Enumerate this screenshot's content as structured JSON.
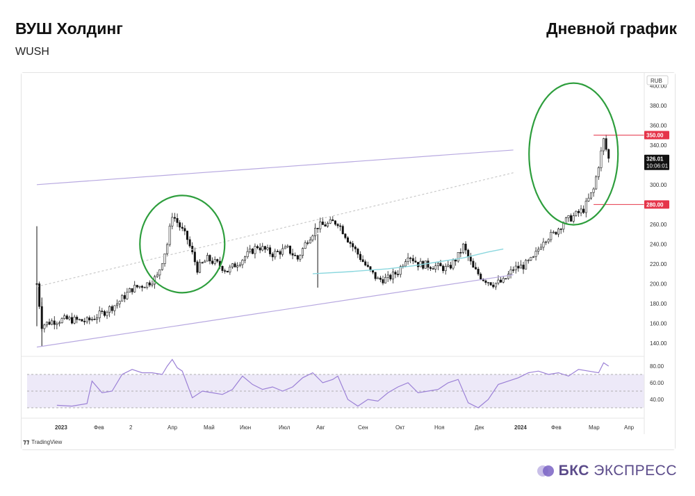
{
  "header": {
    "title": "ВУШ Холдинг",
    "ticker": "WUSH",
    "right_title": "Дневной график"
  },
  "brand": {
    "tradingview": "TradingView",
    "bcs_bold": "БКС",
    "bcs_rest": "ЭКСПРЕСС"
  },
  "chart_data": {
    "type": "candlestick",
    "currency": "RUB",
    "x_ticks": [
      "2023",
      "Фев",
      "2",
      "Апр",
      "Май",
      "Июн",
      "Июл",
      "Авг",
      "Сен",
      "Окт",
      "Ноя",
      "Дек",
      "2024",
      "Фев",
      "Мар",
      "Апр"
    ],
    "y_ticks": [
      140,
      160,
      180,
      200,
      220,
      240,
      260,
      280,
      300,
      320,
      340,
      360,
      380,
      400
    ],
    "y_tick_labels": [
      "140.00",
      "160.00",
      "180.00",
      "200.00",
      "220.00",
      "240.00",
      "260.00",
      "280.00",
      "300.00",
      "320.00",
      "340.00",
      "360.00",
      "380.00",
      "400.00"
    ],
    "ylim": [
      128,
      410
    ],
    "price_labels": {
      "upper": {
        "value": 350,
        "text": "350.00",
        "color": "#e5354a"
      },
      "current": {
        "value": 326.01,
        "text": "326.01",
        "time": "10:06:01",
        "color": "#111111"
      },
      "lower": {
        "value": 280,
        "text": "280.00",
        "color": "#e5354a"
      }
    },
    "trend_path": [
      [
        0,
        200
      ],
      [
        2,
        158
      ],
      [
        6,
        162
      ],
      [
        12,
        164
      ],
      [
        20,
        162
      ],
      [
        26,
        170
      ],
      [
        32,
        180
      ],
      [
        38,
        195
      ],
      [
        44,
        200
      ],
      [
        48,
        207
      ],
      [
        52,
        240
      ],
      [
        54,
        270
      ],
      [
        56,
        262
      ],
      [
        60,
        245
      ],
      [
        64,
        215
      ],
      [
        68,
        225
      ],
      [
        72,
        220
      ],
      [
        76,
        213
      ],
      [
        82,
        225
      ],
      [
        88,
        238
      ],
      [
        94,
        230
      ],
      [
        100,
        235
      ],
      [
        104,
        225
      ],
      [
        108,
        245
      ],
      [
        112,
        258
      ],
      [
        116,
        260
      ],
      [
        118,
        262
      ],
      [
        120,
        262
      ],
      [
        124,
        245
      ],
      [
        128,
        230
      ],
      [
        132,
        215
      ],
      [
        136,
        204
      ],
      [
        140,
        205
      ],
      [
        144,
        212
      ],
      [
        148,
        230
      ],
      [
        152,
        220
      ],
      [
        158,
        218
      ],
      [
        164,
        215
      ],
      [
        168,
        228
      ],
      [
        170,
        238
      ],
      [
        174,
        215
      ],
      [
        178,
        205
      ],
      [
        182,
        200
      ],
      [
        186,
        202
      ],
      [
        190,
        215
      ],
      [
        194,
        218
      ],
      [
        198,
        225
      ],
      [
        202,
        245
      ],
      [
        206,
        250
      ],
      [
        210,
        262
      ],
      [
        214,
        268
      ],
      [
        218,
        275
      ],
      [
        222,
        295
      ],
      [
        224,
        320
      ],
      [
        226,
        345
      ],
      [
        228,
        326
      ]
    ],
    "moving_average": {
      "color": "#8ad7de",
      "points": [
        [
          110,
          210
        ],
        [
          124,
          212
        ],
        [
          140,
          215
        ],
        [
          150,
          218
        ],
        [
          160,
          222
        ],
        [
          170,
          226
        ],
        [
          180,
          232
        ],
        [
          186,
          235
        ]
      ]
    },
    "channel": {
      "upper": [
        [
          0,
          300
        ],
        [
          190,
          335
        ]
      ],
      "lower": [
        [
          0,
          136
        ],
        [
          190,
          209
        ]
      ],
      "middle": [
        [
          0,
          197
        ],
        [
          190,
          312
        ]
      ]
    },
    "horizontal_levels": [
      350,
      280
    ],
    "circles": [
      {
        "center_index": 58,
        "center_value": 240,
        "color": "#2e9e3d"
      },
      {
        "center_index": 214,
        "center_value": 331,
        "color": "#2e9e3d"
      }
    ],
    "rsi": {
      "y_ticks": [
        40,
        60,
        80
      ],
      "y_tick_labels": [
        "40.00",
        "60.00",
        "80.00"
      ],
      "overbought": 70,
      "mid": 50,
      "oversold": 30,
      "line_color": "#9b80d6",
      "path": [
        [
          8,
          33
        ],
        [
          14,
          32
        ],
        [
          20,
          35
        ],
        [
          22,
          62
        ],
        [
          26,
          48
        ],
        [
          30,
          50
        ],
        [
          34,
          70
        ],
        [
          38,
          76
        ],
        [
          42,
          72
        ],
        [
          46,
          72
        ],
        [
          50,
          70
        ],
        [
          52,
          80
        ],
        [
          54,
          88
        ],
        [
          56,
          78
        ],
        [
          58,
          74
        ],
        [
          62,
          42
        ],
        [
          66,
          50
        ],
        [
          70,
          48
        ],
        [
          74,
          46
        ],
        [
          78,
          52
        ],
        [
          82,
          68
        ],
        [
          86,
          58
        ],
        [
          90,
          52
        ],
        [
          94,
          55
        ],
        [
          98,
          50
        ],
        [
          102,
          55
        ],
        [
          106,
          66
        ],
        [
          110,
          72
        ],
        [
          114,
          60
        ],
        [
          118,
          64
        ],
        [
          120,
          68
        ],
        [
          124,
          40
        ],
        [
          128,
          32
        ],
        [
          132,
          40
        ],
        [
          136,
          38
        ],
        [
          140,
          48
        ],
        [
          144,
          55
        ],
        [
          148,
          60
        ],
        [
          152,
          48
        ],
        [
          156,
          50
        ],
        [
          160,
          52
        ],
        [
          164,
          60
        ],
        [
          168,
          64
        ],
        [
          172,
          36
        ],
        [
          176,
          30
        ],
        [
          180,
          40
        ],
        [
          184,
          58
        ],
        [
          188,
          62
        ],
        [
          192,
          66
        ],
        [
          196,
          72
        ],
        [
          200,
          74
        ],
        [
          204,
          70
        ],
        [
          208,
          72
        ],
        [
          212,
          68
        ],
        [
          216,
          76
        ],
        [
          220,
          74
        ],
        [
          224,
          72
        ],
        [
          226,
          84
        ],
        [
          228,
          80
        ]
      ]
    }
  }
}
